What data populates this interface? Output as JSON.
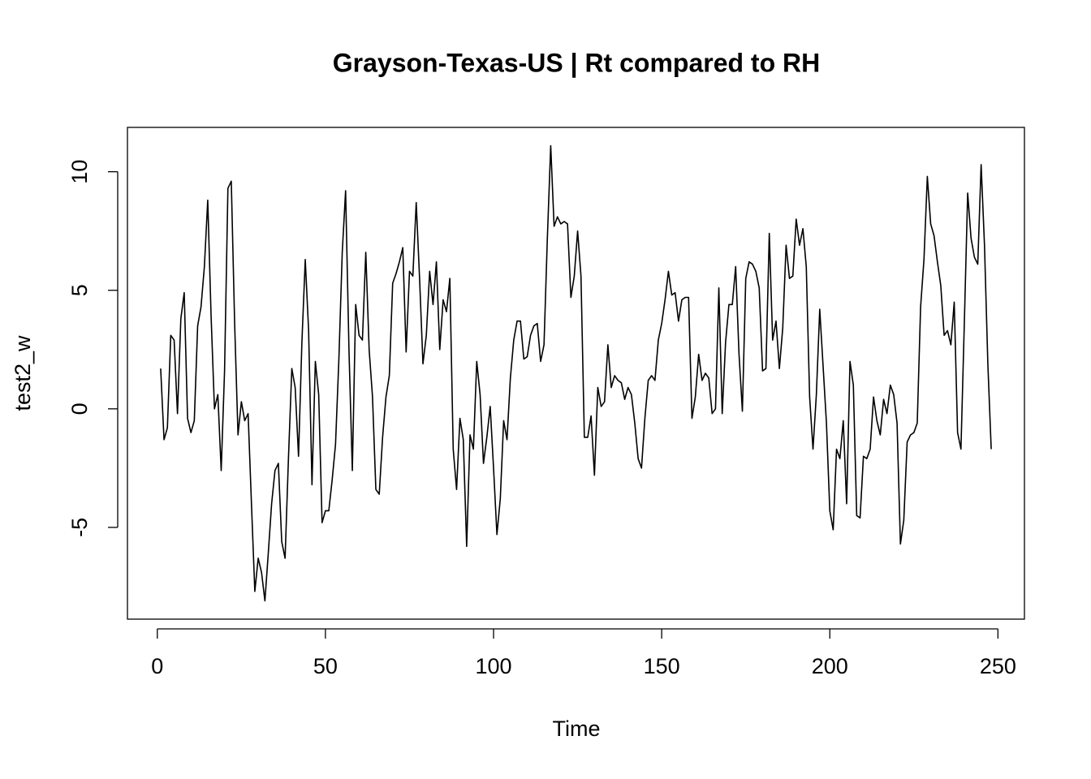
{
  "chart_data": {
    "type": "line",
    "title": "Grayson-Texas-US | Rt compared to RH",
    "x_label": "Time",
    "y_label": "test2_w",
    "color": "#000000",
    "xlim": [
      -8.88,
      257.88
    ],
    "ylim": [
      -8.87,
      11.87
    ],
    "xticks": [
      0,
      50,
      100,
      150,
      200,
      250
    ],
    "yticks": [
      -5,
      0,
      5,
      10
    ],
    "x": [
      1,
      2,
      3,
      4,
      5,
      6,
      7,
      8,
      9,
      10,
      11,
      12,
      13,
      14,
      15,
      16,
      17,
      18,
      19,
      20,
      21,
      22,
      23,
      24,
      25,
      26,
      27,
      28,
      29,
      30,
      31,
      32,
      33,
      34,
      35,
      36,
      37,
      38,
      39,
      40,
      41,
      42,
      43,
      44,
      45,
      46,
      47,
      48,
      49,
      50,
      51,
      52,
      53,
      54,
      55,
      56,
      57,
      58,
      59,
      60,
      61,
      62,
      63,
      64,
      65,
      66,
      67,
      68,
      69,
      70,
      71,
      72,
      73,
      74,
      75,
      76,
      77,
      78,
      79,
      80,
      81,
      82,
      83,
      84,
      85,
      86,
      87,
      88,
      89,
      90,
      91,
      92,
      93,
      94,
      95,
      96,
      97,
      98,
      99,
      100,
      101,
      102,
      103,
      104,
      105,
      106,
      107,
      108,
      109,
      110,
      111,
      112,
      113,
      114,
      115,
      116,
      117,
      118,
      119,
      120,
      121,
      122,
      123,
      124,
      125,
      126,
      127,
      128,
      129,
      130,
      131,
      132,
      133,
      134,
      135,
      136,
      137,
      138,
      139,
      140,
      141,
      142,
      143,
      144,
      145,
      146,
      147,
      148,
      149,
      150,
      151,
      152,
      153,
      154,
      155,
      156,
      157,
      158,
      159,
      160,
      161,
      162,
      163,
      164,
      165,
      166,
      167,
      168,
      169,
      170,
      171,
      172,
      173,
      174,
      175,
      176,
      177,
      178,
      179,
      180,
      181,
      182,
      183,
      184,
      185,
      186,
      187,
      188,
      189,
      190,
      191,
      192,
      193,
      194,
      195,
      196,
      197,
      198,
      199,
      200,
      201,
      202,
      203,
      204,
      205,
      206,
      207,
      208,
      209,
      210,
      211,
      212,
      213,
      214,
      215,
      216,
      217,
      218,
      219,
      220,
      221,
      222,
      223,
      224,
      225,
      226,
      227,
      228,
      229,
      230,
      231,
      232,
      233,
      234,
      235,
      236,
      237,
      238,
      239,
      240,
      241,
      242,
      243,
      244,
      245,
      246,
      247,
      248
    ],
    "values": [
      1.7,
      -1.3,
      -0.8,
      3.1,
      2.9,
      -0.2,
      3.8,
      4.9,
      -0.4,
      -1.0,
      -0.5,
      3.5,
      4.3,
      6.0,
      8.8,
      3.9,
      0.0,
      0.6,
      -2.6,
      1.6,
      9.3,
      9.6,
      3.6,
      -1.1,
      0.3,
      -0.5,
      -0.2,
      -4.0,
      -7.7,
      -6.3,
      -6.9,
      -8.1,
      -6.1,
      -4.0,
      -2.6,
      -2.3,
      -5.6,
      -6.3,
      -2.1,
      1.7,
      0.9,
      -2.0,
      2.8,
      6.3,
      3.3,
      -3.2,
      2.0,
      0.6,
      -4.8,
      -4.3,
      -4.3,
      -3.0,
      -1.5,
      2.1,
      6.6,
      9.2,
      2.5,
      -2.6,
      4.4,
      3.1,
      2.9,
      6.6,
      2.5,
      0.5,
      -3.4,
      -3.6,
      -1.2,
      0.5,
      1.4,
      5.3,
      5.7,
      6.2,
      6.8,
      2.4,
      5.8,
      5.6,
      8.7,
      5.5,
      1.9,
      3.1,
      5.8,
      4.4,
      6.2,
      2.5,
      4.6,
      4.1,
      5.5,
      -1.7,
      -3.4,
      -0.4,
      -1.3,
      -5.8,
      -1.1,
      -1.7,
      2.0,
      0.6,
      -2.3,
      -1.2,
      0.1,
      -2.5,
      -5.3,
      -3.8,
      -0.5,
      -1.3,
      1.3,
      2.9,
      3.7,
      3.7,
      2.1,
      2.2,
      3.1,
      3.5,
      3.6,
      2.0,
      2.7,
      7.2,
      11.1,
      7.7,
      8.1,
      7.8,
      7.9,
      7.8,
      4.7,
      5.6,
      7.5,
      5.6,
      -1.2,
      -1.2,
      -0.3,
      -2.8,
      0.9,
      0.1,
      0.3,
      2.7,
      0.9,
      1.4,
      1.2,
      1.1,
      0.4,
      0.9,
      0.6,
      -0.6,
      -2.1,
      -2.5,
      -0.4,
      1.2,
      1.4,
      1.2,
      2.9,
      3.6,
      4.6,
      5.8,
      4.8,
      4.9,
      3.7,
      4.6,
      4.7,
      4.7,
      -0.4,
      0.5,
      2.3,
      1.2,
      1.5,
      1.3,
      -0.2,
      0.0,
      5.1,
      -0.2,
      2.8,
      4.4,
      4.4,
      6.0,
      2.3,
      -0.1,
      5.5,
      6.2,
      6.1,
      5.8,
      5.1,
      1.6,
      1.7,
      7.4,
      2.9,
      3.7,
      1.7,
      3.4,
      6.9,
      5.5,
      5.6,
      8.0,
      6.9,
      7.6,
      6.0,
      0.5,
      -1.7,
      0.6,
      4.2,
      1.8,
      -0.6,
      -4.3,
      -5.1,
      -1.7,
      -2.1,
      -0.5,
      -4.0,
      2.0,
      1.0,
      -4.5,
      -4.6,
      -2.0,
      -2.1,
      -1.7,
      0.5,
      -0.5,
      -1.1,
      0.4,
      -0.2,
      1.0,
      0.6,
      -0.6,
      -5.7,
      -4.7,
      -1.4,
      -1.1,
      -1.0,
      -0.6,
      4.3,
      6.3,
      9.8,
      7.8,
      7.3,
      6.2,
      5.2,
      3.1,
      3.3,
      2.7,
      4.5,
      -1.0,
      -1.7,
      3.6,
      9.1,
      7.2,
      6.4,
      6.1,
      10.3,
      6.9,
      1.9,
      -1.7
    ]
  }
}
